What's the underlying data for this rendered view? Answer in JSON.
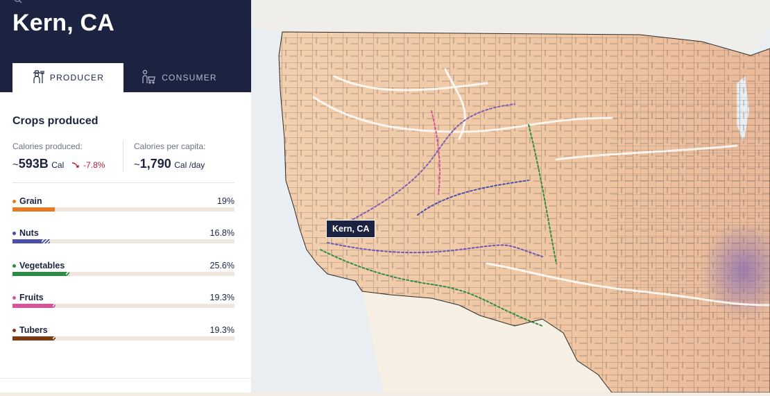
{
  "header": {
    "title": "Kern, CA"
  },
  "tabs": [
    {
      "label": "PRODUCER",
      "icon": "farmer-icon",
      "active": true
    },
    {
      "label": "CONSUMER",
      "icon": "shopper-icon",
      "active": false
    }
  ],
  "crops": {
    "heading": "Crops produced",
    "calories_produced": {
      "label": "Calories produced:",
      "prefix": "~",
      "value": "593B",
      "unit": "Cal",
      "change": "-7.8%"
    },
    "calories_per_capita": {
      "label": "Calories per capita:",
      "prefix": "~",
      "value": "1,790",
      "unit": "Cal /day"
    },
    "items": [
      {
        "name": "Grain",
        "percent": "19%",
        "color": "#e97a1f",
        "fill": 0.19,
        "hatch": 0
      },
      {
        "name": "Nuts",
        "percent": "16.8%",
        "color": "#4a4fa8",
        "fill": 0.13,
        "hatch": 0.04
      },
      {
        "name": "Vegetables",
        "percent": "25.6%",
        "color": "#2e8b47",
        "fill": 0.24,
        "hatch": 0.015
      },
      {
        "name": "Fruits",
        "percent": "19.3%",
        "color": "#d4559a",
        "fill": 0.18,
        "hatch": 0.015
      },
      {
        "name": "Tubers",
        "percent": "19.3%",
        "color": "#7a3b12",
        "fill": 0.18,
        "hatch": 0.015
      }
    ]
  },
  "map": {
    "tooltip": "Kern, CA",
    "colors": {
      "land": "#f1c9a6",
      "ocean": "#e8eef1",
      "border": "#2a2a2a"
    }
  }
}
